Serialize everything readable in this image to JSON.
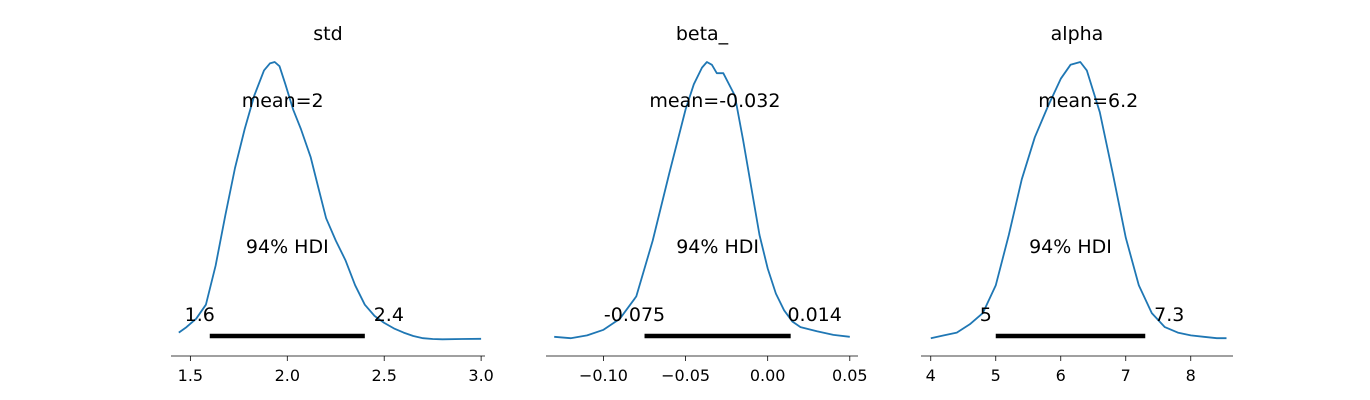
{
  "chart_data": [
    {
      "type": "line",
      "kind": "posterior density (KDE)",
      "title": "std",
      "mean_label": "mean=2",
      "hdi_label": "94% HDI",
      "hdi": [
        1.6,
        2.4
      ],
      "hdi_low_label": "1.6",
      "hdi_high_label": "2.4",
      "xlim": [
        1.4,
        3.02
      ],
      "xticks": [
        1.5,
        2.0,
        2.5,
        3.0
      ],
      "xtick_labels": [
        "1.5",
        "2.0",
        "2.5",
        "3.0"
      ],
      "density_x": [
        1.44,
        1.48,
        1.53,
        1.58,
        1.63,
        1.68,
        1.73,
        1.78,
        1.83,
        1.88,
        1.91,
        1.935,
        1.96,
        1.99,
        2.03,
        2.07,
        2.12,
        2.16,
        2.2,
        2.25,
        2.3,
        2.35,
        2.4,
        2.45,
        2.5,
        2.55,
        2.6,
        2.65,
        2.7,
        2.75,
        2.8,
        2.9,
        3.0
      ],
      "density_y": [
        0.03,
        0.05,
        0.08,
        0.13,
        0.27,
        0.45,
        0.62,
        0.76,
        0.88,
        0.97,
        0.995,
        1.0,
        0.985,
        0.92,
        0.83,
        0.76,
        0.66,
        0.55,
        0.44,
        0.36,
        0.29,
        0.2,
        0.13,
        0.09,
        0.065,
        0.045,
        0.03,
        0.018,
        0.01,
        0.007,
        0.006,
        0.007,
        0.008
      ]
    },
    {
      "type": "line",
      "kind": "posterior density (KDE)",
      "title": "beta_",
      "mean_label": "mean=-0.032",
      "hdi_label": "94% HDI",
      "hdi": [
        -0.075,
        0.014
      ],
      "hdi_low_label": "-0.075",
      "hdi_high_label": "0.014",
      "xlim": [
        -0.135,
        0.055
      ],
      "xticks": [
        -0.1,
        -0.05,
        0.0,
        0.05
      ],
      "xtick_labels": [
        "−0.10",
        "−0.05",
        "0.00",
        "0.05"
      ],
      "density_x": [
        -0.13,
        -0.12,
        -0.11,
        -0.1,
        -0.09,
        -0.08,
        -0.07,
        -0.06,
        -0.05,
        -0.045,
        -0.04,
        -0.037,
        -0.034,
        -0.031,
        -0.027,
        -0.02,
        -0.015,
        -0.01,
        -0.005,
        0.0,
        0.005,
        0.01,
        0.015,
        0.02,
        0.03,
        0.04,
        0.05
      ],
      "density_y": [
        0.015,
        0.01,
        0.02,
        0.04,
        0.08,
        0.16,
        0.36,
        0.6,
        0.83,
        0.92,
        0.98,
        1.0,
        0.99,
        0.96,
        0.96,
        0.88,
        0.72,
        0.55,
        0.38,
        0.26,
        0.17,
        0.11,
        0.07,
        0.05,
        0.035,
        0.022,
        0.015
      ]
    },
    {
      "type": "line",
      "kind": "posterior density (KDE)",
      "title": "alpha",
      "mean_label": "mean=6.2",
      "hdi_label": "94% HDI",
      "hdi": [
        5.0,
        7.3
      ],
      "hdi_low_label": "5",
      "hdi_high_label": "7.3",
      "xlim": [
        3.85,
        8.65
      ],
      "xticks": [
        4,
        5,
        6,
        7,
        8
      ],
      "xtick_labels": [
        "4",
        "5",
        "6",
        "7",
        "8"
      ],
      "density_x": [
        4.0,
        4.2,
        4.4,
        4.6,
        4.8,
        5.0,
        5.2,
        5.4,
        5.6,
        5.8,
        6.0,
        6.15,
        6.3,
        6.4,
        6.6,
        6.8,
        7.0,
        7.2,
        7.4,
        7.6,
        7.8,
        8.0,
        8.2,
        8.4,
        8.55
      ],
      "density_y": [
        0.01,
        0.02,
        0.03,
        0.06,
        0.1,
        0.2,
        0.38,
        0.58,
        0.73,
        0.84,
        0.94,
        0.99,
        1.0,
        0.97,
        0.82,
        0.6,
        0.37,
        0.2,
        0.1,
        0.05,
        0.03,
        0.02,
        0.015,
        0.01,
        0.01
      ]
    }
  ]
}
